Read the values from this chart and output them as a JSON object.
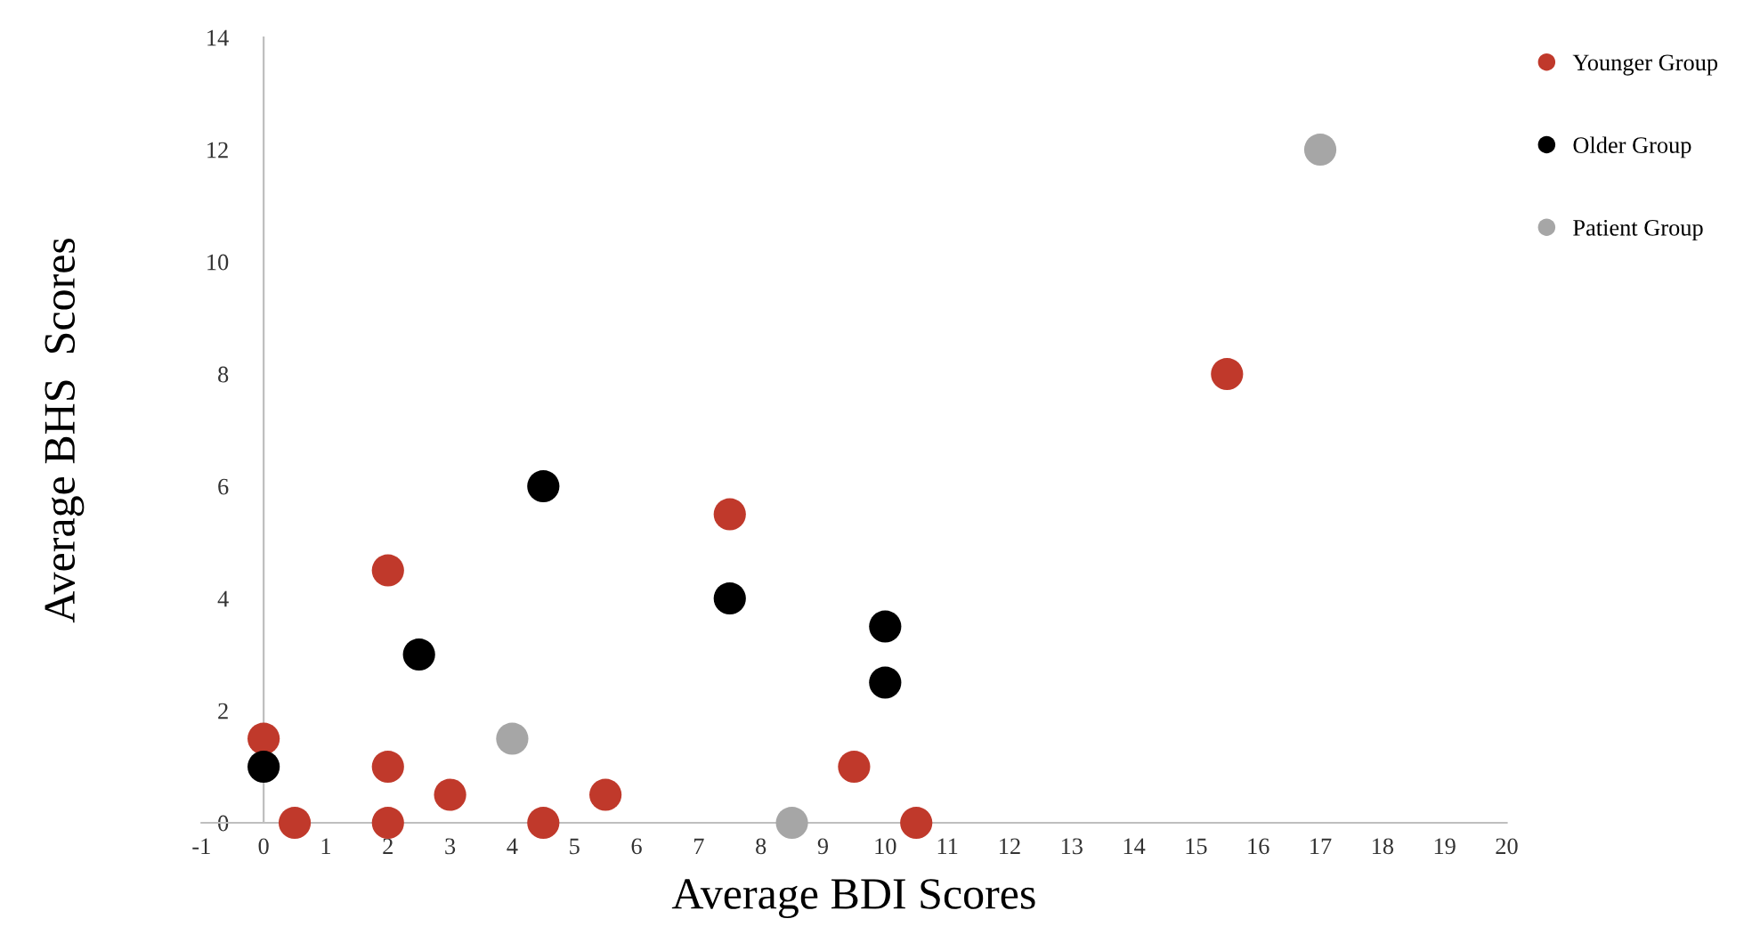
{
  "chart_data": {
    "type": "scatter",
    "xlabel": "Average BDI Scores",
    "ylabel": "Average BHS  Scores",
    "xlim": [
      -1,
      20
    ],
    "ylim": [
      0,
      14
    ],
    "xticks": [
      -1,
      0,
      1,
      2,
      3,
      4,
      5,
      6,
      7,
      8,
      9,
      10,
      11,
      12,
      13,
      14,
      15,
      16,
      17,
      18,
      19,
      20
    ],
    "yticks": [
      0,
      2,
      4,
      6,
      8,
      10,
      12,
      14
    ],
    "grid": false,
    "legend": "right",
    "marker": "circle",
    "series": [
      {
        "name": "Younger Group",
        "color": "#c0392b",
        "x": [
          0,
          0.5,
          2,
          2,
          2,
          3,
          4.5,
          5.5,
          7.5,
          9.5,
          10.5,
          15.5
        ],
        "values": [
          1.5,
          0,
          4.5,
          1,
          0,
          0.5,
          0,
          0.5,
          5.5,
          1,
          0,
          8
        ]
      },
      {
        "name": "Older Group",
        "color": "#000000",
        "x": [
          0,
          2.5,
          4.5,
          7.5,
          10,
          10
        ],
        "values": [
          1,
          3,
          6,
          4,
          3.5,
          2.5
        ]
      },
      {
        "name": "Patient Group",
        "color": "#a6a6a6",
        "x": [
          4,
          8.5,
          17
        ],
        "values": [
          1.5,
          0,
          12
        ]
      }
    ]
  }
}
